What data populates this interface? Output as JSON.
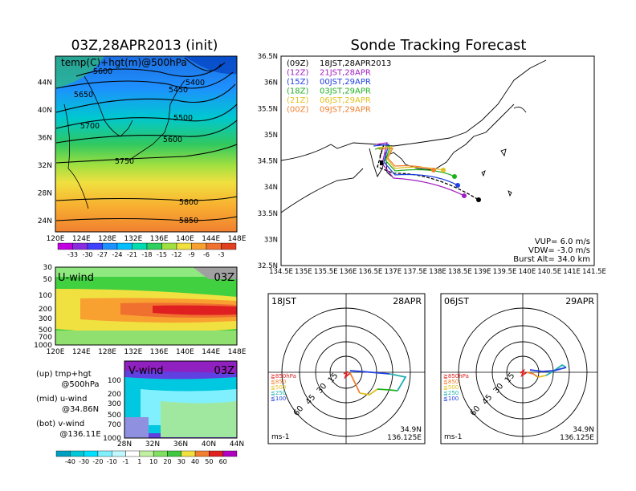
{
  "left_title": "03Z,28APR2013 (init)",
  "right_title": "Sonde Tracking Forecast",
  "upper_map": {
    "label": "temp(C)+hgt(m)@500hPa",
    "x_ticks": [
      "120E",
      "124E",
      "128E",
      "132E",
      "136E",
      "140E",
      "144E",
      "148E"
    ],
    "y_ticks": [
      "24N",
      "28N",
      "32N",
      "36N",
      "40N",
      "44N"
    ],
    "contours": [
      {
        "label": "5400",
        "values_desc": "northernmost"
      },
      {
        "label": "5450"
      },
      {
        "label": "5500"
      },
      {
        "label": "5600"
      },
      {
        "label": "5650"
      },
      {
        "label": "5700"
      },
      {
        "label": "5750"
      },
      {
        "label": "5800"
      },
      {
        "label": "5850"
      }
    ],
    "contour_labels": [
      "5600",
      "5400",
      "5650",
      "5450",
      "5700",
      "5500",
      "5600",
      "5750",
      "5800",
      "5850"
    ],
    "colorbar": [
      "-33",
      "-30",
      "-27",
      "-24",
      "-21",
      "-18",
      "-15",
      "-12",
      "-9",
      "-6",
      "-3"
    ],
    "colorbar_colors": [
      "#c000e0",
      "#8a2be2",
      "#4040ff",
      "#1e90ff",
      "#00bfff",
      "#00dcb0",
      "#30d060",
      "#a0e040",
      "#f0e040",
      "#f8a030",
      "#f07030",
      "#e04020"
    ]
  },
  "u_wind": {
    "label": "U-wind",
    "time": "03Z",
    "y_ticks": [
      "30",
      "50",
      "100",
      "200",
      "300",
      "500",
      "700",
      "1000"
    ],
    "x_ticks": [
      "120E",
      "124E",
      "128E",
      "132E",
      "136E",
      "140E",
      "144E",
      "148E"
    ]
  },
  "v_wind": {
    "label": "V-wind",
    "time": "03Z",
    "y_ticks": [
      "100",
      "200",
      "300",
      "500",
      "700",
      "1000"
    ],
    "x_ticks": [
      "28N",
      "32N",
      "36N",
      "40N",
      "44N"
    ]
  },
  "legend_notes": [
    {
      "line1": "(up) tmp+hgt",
      "line2": "@500hPa"
    },
    {
      "line1": "(mid) u-wind",
      "line2": "@34.86N"
    },
    {
      "line1": "(bot) v-wind",
      "line2": "@136.11E"
    }
  ],
  "wind_colorbar": {
    "labels": [
      "-40",
      "-30",
      "-20",
      "-10",
      "-1",
      "1",
      "10",
      "20",
      "30",
      "40",
      "50",
      "60"
    ],
    "colors": [
      "#00a0c0",
      "#00c8d8",
      "#00e0ff",
      "#80f0ff",
      "#c0f8ff",
      "#ffffff",
      "#c0f0a0",
      "#80e060",
      "#40c840",
      "#f0e040",
      "#f08030",
      "#e02020",
      "#b000c0"
    ]
  },
  "track_map": {
    "x_ticks": [
      "134.5E",
      "135E",
      "135.5E",
      "136E",
      "136.5E",
      "137E",
      "137.5E",
      "138E",
      "138.5E",
      "139E",
      "139.5E",
      "140E",
      "140.5E",
      "141E",
      "141.5E"
    ],
    "y_ticks": [
      "32.5N",
      "33N",
      "33.5N",
      "34N",
      "34.5N",
      "35N",
      "35.5N",
      "36N",
      "36.5N"
    ],
    "runs": [
      {
        "id": "(09Z)",
        "when": "18JST,28APR2013",
        "color": "#000000"
      },
      {
        "id": "(12Z)",
        "when": "21JST,28APR",
        "color": "#a020c0"
      },
      {
        "id": "(15Z)",
        "when": "00JST,29APR",
        "color": "#2040e0"
      },
      {
        "id": "(18Z)",
        "when": "03JST,29APR",
        "color": "#20b020"
      },
      {
        "id": "(21Z)",
        "when": "06JST,29APR",
        "color": "#e0c020"
      },
      {
        "id": "(00Z)",
        "when": "09JST,29APR",
        "color": "#f08030"
      }
    ],
    "params": [
      "VUP= 6.0 m/s",
      "VDW= -3.0 m/s",
      "Burst Alt= 34.0 km"
    ]
  },
  "hodographs": [
    {
      "time": "18JST",
      "date": "28APR",
      "unit": "ms-1",
      "lat": "34.9N",
      "lon": "136.125E",
      "ring_labels": [
        "15",
        "30",
        "45",
        "60"
      ],
      "levels": [
        "≧850hPa",
        "≦850",
        "≦500",
        "≦250",
        "≦100"
      ],
      "level_colors": [
        "#e02020",
        "#f08030",
        "#e0c020",
        "#20b0b0",
        "#2040e0"
      ]
    },
    {
      "time": "06JST",
      "date": "29APR",
      "unit": "ms-1",
      "lat": "34.9N",
      "lon": "136.125E",
      "ring_labels": [
        "15",
        "30",
        "45",
        "60"
      ],
      "levels": [
        "≧850hPa",
        "≦850",
        "≦500",
        "≦250",
        "≦100"
      ],
      "level_colors": [
        "#e02020",
        "#f08030",
        "#e0c020",
        "#20b0b0",
        "#2040e0"
      ]
    }
  ]
}
